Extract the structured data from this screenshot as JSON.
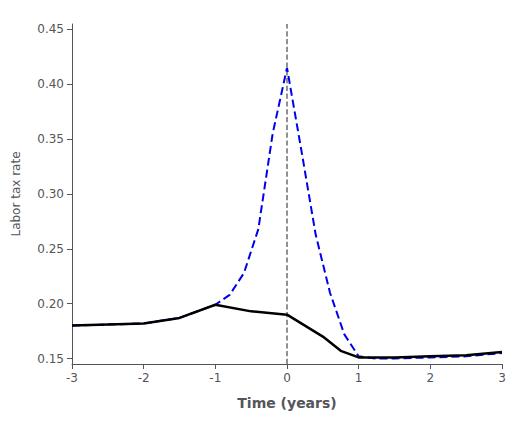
{
  "chart_data": {
    "type": "line",
    "title": "",
    "xlabel": "Time (years)",
    "ylabel": "Labor tax rate",
    "xlim": [
      -3,
      3
    ],
    "xticks": [
      -3,
      -2,
      -1,
      0,
      1,
      2,
      3
    ],
    "ylim": [
      0.145,
      0.455
    ],
    "yticks": [
      0.15,
      {
        "value": 0.2,
        "label": "0.20"
      },
      0.25,
      {
        "value": 0.3,
        "label": "0.30"
      },
      0.35,
      {
        "value": 0.4,
        "label": "0.40"
      },
      0.45
    ],
    "grid": false,
    "series": [
      {
        "type": "vline",
        "color": "#555555",
        "line_style": "dashed",
        "x": [
          0
        ]
      },
      {
        "type": "line",
        "color": "#0000ee",
        "line_style": "dashed",
        "x": [
          -3.0,
          -2.5,
          -2.0,
          -1.5,
          -1.0,
          -0.8,
          -0.6,
          -0.4,
          -0.2,
          0.0,
          0.2,
          0.4,
          0.6,
          0.8,
          1.0,
          1.25,
          1.5,
          2.0,
          2.5,
          3.0
        ],
        "values": [
          0.18,
          0.181,
          0.182,
          0.187,
          0.199,
          0.208,
          0.228,
          0.268,
          0.355,
          0.415,
          0.34,
          0.263,
          0.21,
          0.172,
          0.152,
          0.15,
          0.15,
          0.151,
          0.152,
          0.155
        ]
      },
      {
        "type": "line",
        "color": "#000000",
        "line_style": "solid",
        "x": [
          -3.0,
          -2.5,
          -2.0,
          -1.5,
          -1.0,
          -0.5,
          0.0,
          0.5,
          0.75,
          1.0,
          1.5,
          2.0,
          2.5,
          3.0
        ],
        "values": [
          0.18,
          0.181,
          0.182,
          0.187,
          0.199,
          0.193,
          0.19,
          0.17,
          0.157,
          0.151,
          0.151,
          0.152,
          0.153,
          0.156
        ]
      }
    ]
  }
}
